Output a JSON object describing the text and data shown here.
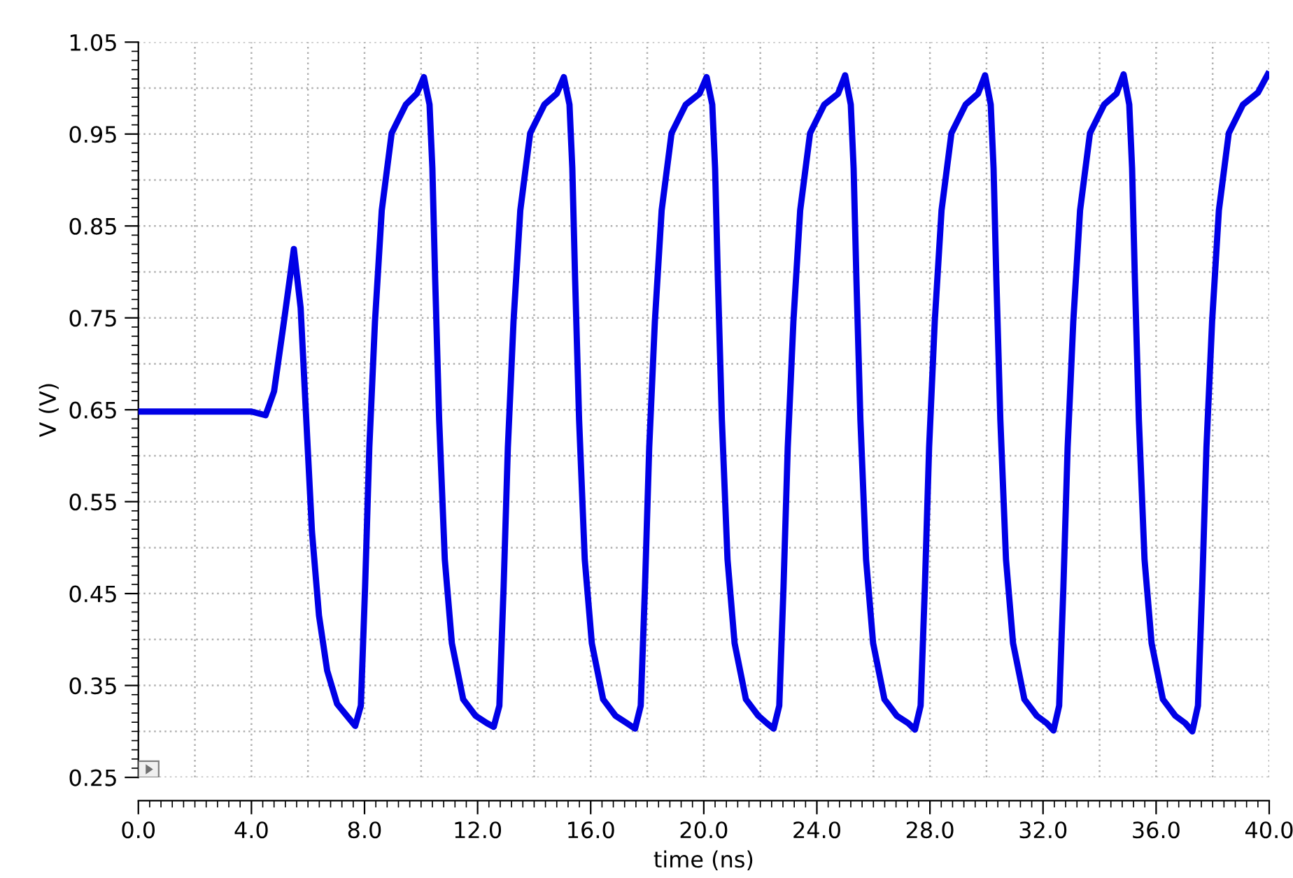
{
  "chart_data": {
    "type": "line",
    "xlabel": "time (ns)",
    "ylabel": "V (V)",
    "x": [
      0,
      4.0,
      4.5,
      4.8,
      5.15,
      5.5,
      5.74,
      5.94,
      6.14,
      6.39,
      6.68,
      7.03,
      7.43,
      7.67,
      7.87,
      8.02,
      8.17,
      8.37,
      8.61,
      8.96,
      9.46,
      9.85,
      10.1,
      10.3,
      10.4,
      10.5,
      10.64,
      10.84,
      11.09,
      11.49,
      11.93,
      12.33,
      12.57,
      12.77,
      12.92,
      13.07,
      13.27,
      13.51,
      13.86,
      14.36,
      14.8,
      15.05,
      15.25,
      15.35,
      15.45,
      15.59,
      15.79,
      16.04,
      16.44,
      16.88,
      17.28,
      17.57,
      17.77,
      17.92,
      18.07,
      18.27,
      18.51,
      18.86,
      19.36,
      19.85,
      20.1,
      20.3,
      20.4,
      20.5,
      20.64,
      20.84,
      21.09,
      21.49,
      21.93,
      22.23,
      22.47,
      22.67,
      22.82,
      22.97,
      23.17,
      23.41,
      23.76,
      24.26,
      24.75,
      25.0,
      25.2,
      25.3,
      25.4,
      25.54,
      25.74,
      25.99,
      26.39,
      26.83,
      27.23,
      27.47,
      27.67,
      27.82,
      27.97,
      28.17,
      28.41,
      28.76,
      29.26,
      29.7,
      29.95,
      30.15,
      30.25,
      30.35,
      30.49,
      30.69,
      30.94,
      31.34,
      31.78,
      32.13,
      32.37,
      32.57,
      32.72,
      32.87,
      33.07,
      33.31,
      33.66,
      34.16,
      34.6,
      34.85,
      35.05,
      35.15,
      35.25,
      35.39,
      35.59,
      35.84,
      36.24,
      36.68,
      37.03,
      37.28,
      37.48,
      37.63,
      37.78,
      37.98,
      38.22,
      38.57,
      39.07,
      39.6,
      39.95
    ],
    "series": [
      {
        "color": "#0000e6",
        "values": [
          0.648,
          0.648,
          0.644,
          0.67,
          0.746,
          0.825,
          0.761,
          0.639,
          0.518,
          0.426,
          0.366,
          0.33,
          0.315,
          0.306,
          0.328,
          0.457,
          0.609,
          0.746,
          0.867,
          0.951,
          0.982,
          0.994,
          1.012,
          0.982,
          0.913,
          0.791,
          0.639,
          0.487,
          0.396,
          0.335,
          0.317,
          0.309,
          0.305,
          0.328,
          0.457,
          0.609,
          0.746,
          0.867,
          0.951,
          0.982,
          0.994,
          1.012,
          0.982,
          0.913,
          0.791,
          0.639,
          0.487,
          0.396,
          0.335,
          0.317,
          0.309,
          0.303,
          0.328,
          0.457,
          0.609,
          0.746,
          0.867,
          0.951,
          0.982,
          0.994,
          1.012,
          0.982,
          0.913,
          0.791,
          0.639,
          0.487,
          0.396,
          0.335,
          0.317,
          0.309,
          0.303,
          0.328,
          0.457,
          0.609,
          0.746,
          0.867,
          0.951,
          0.982,
          0.994,
          1.014,
          0.982,
          0.913,
          0.791,
          0.639,
          0.487,
          0.396,
          0.335,
          0.317,
          0.309,
          0.302,
          0.328,
          0.457,
          0.609,
          0.746,
          0.867,
          0.951,
          0.982,
          0.994,
          1.014,
          0.982,
          0.913,
          0.791,
          0.639,
          0.487,
          0.396,
          0.335,
          0.317,
          0.309,
          0.301,
          0.328,
          0.457,
          0.609,
          0.746,
          0.867,
          0.951,
          0.982,
          0.994,
          1.015,
          0.982,
          0.913,
          0.791,
          0.639,
          0.487,
          0.396,
          0.335,
          0.317,
          0.309,
          0.3,
          0.328,
          0.457,
          0.609,
          0.746,
          0.867,
          0.951,
          0.982,
          0.995,
          1.015
        ]
      }
    ],
    "xlim": [
      0,
      40
    ],
    "ylim": [
      0.25,
      1.05
    ],
    "xticks": [
      {
        "value": 0,
        "label": "0.0"
      },
      {
        "value": 4,
        "label": "4.0"
      },
      {
        "value": 8,
        "label": "8.0"
      },
      {
        "value": 12,
        "label": "12.0"
      },
      {
        "value": 16,
        "label": "16.0"
      },
      {
        "value": 20,
        "label": "20.0"
      },
      {
        "value": 24,
        "label": "24.0"
      },
      {
        "value": 28,
        "label": "28.0"
      },
      {
        "value": 32,
        "label": "32.0"
      },
      {
        "value": 36,
        "label": "36.0"
      },
      {
        "value": 40,
        "label": "40.0"
      }
    ],
    "yticks": [
      0.25,
      0.35,
      0.45,
      0.55,
      0.65,
      0.75,
      0.85,
      0.95,
      1.05
    ],
    "grid": true,
    "legend": false,
    "marker": "none",
    "line_style": "solid"
  }
}
